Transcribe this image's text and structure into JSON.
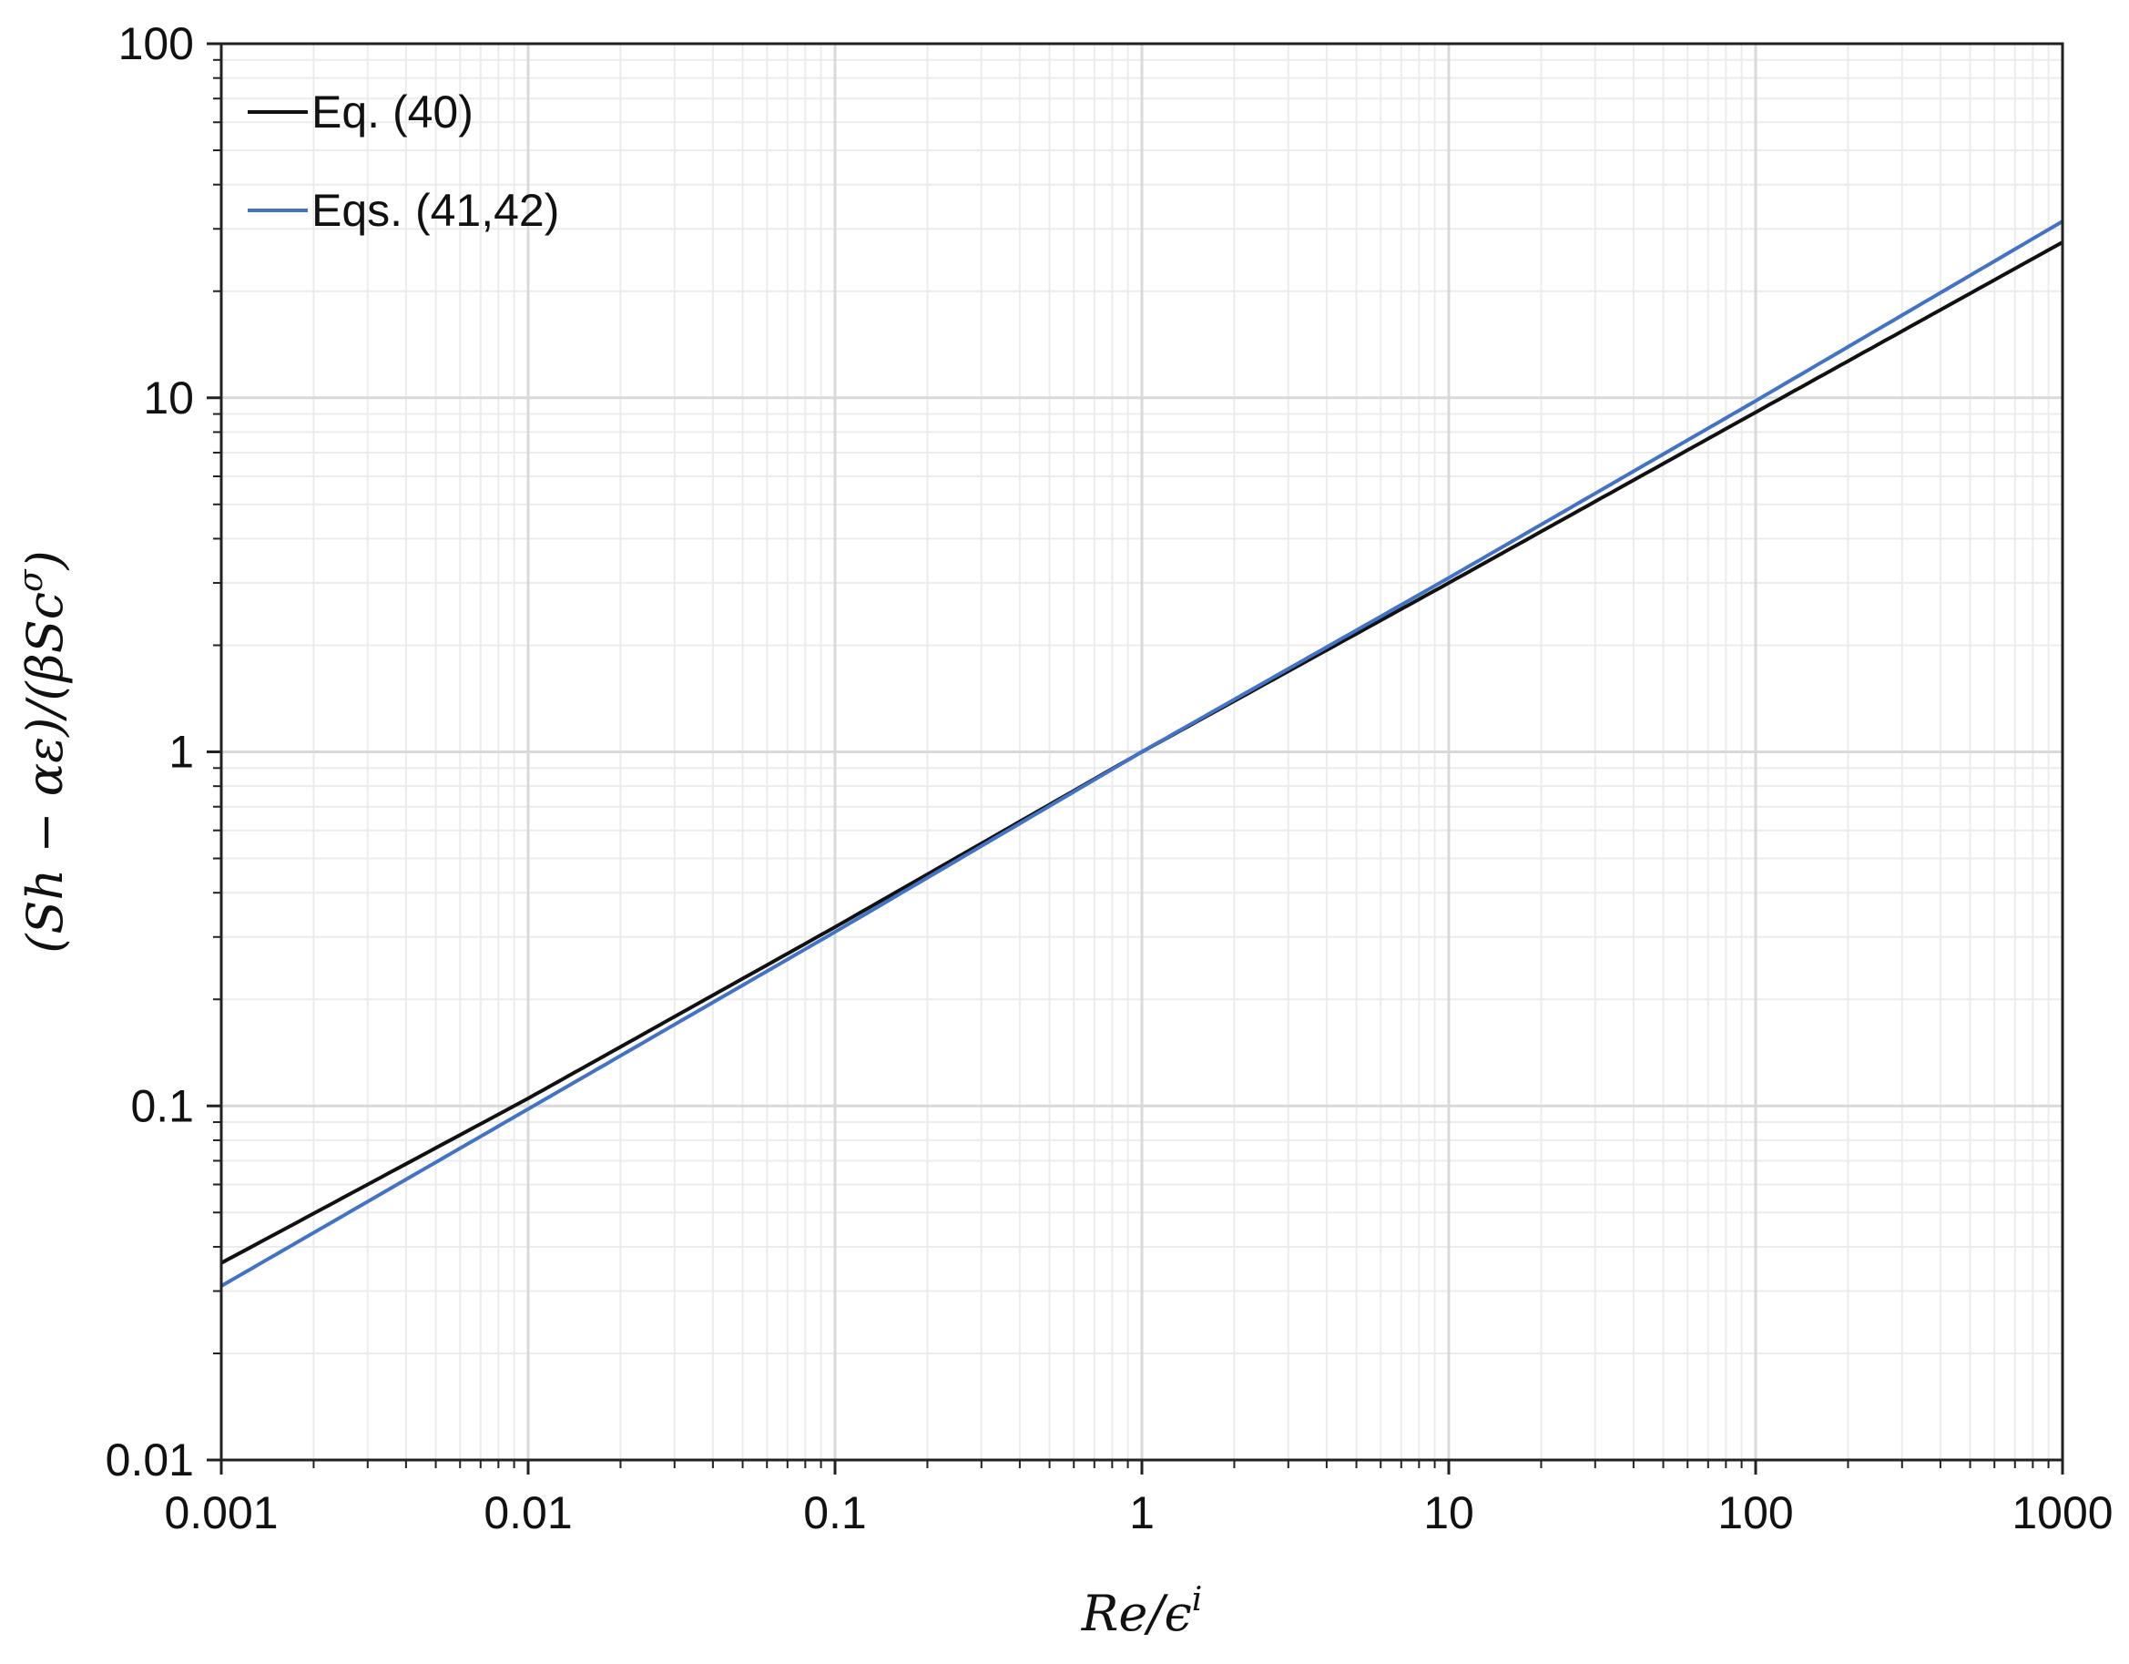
{
  "chart_data": {
    "type": "line",
    "xlabel": "Re/ϵ^i",
    "xlabel_parts": {
      "base": "Re/ϵ",
      "sup": "i"
    },
    "ylabel": "(Sh − αε)/(βSc^σ)",
    "ylabel_parts": {
      "pre": "(Sh − αε)/(βSc",
      "sup": "σ",
      "post": ")"
    },
    "xscale": "log",
    "yscale": "log",
    "xlim": [
      0.001,
      1000
    ],
    "ylim": [
      0.01,
      100
    ],
    "x_ticks": [
      0.001,
      0.01,
      0.1,
      1,
      10,
      100,
      1000
    ],
    "x_tick_labels": [
      "0.001",
      "0.01",
      "0.1",
      "1",
      "10",
      "100",
      "1000"
    ],
    "y_ticks": [
      0.01,
      0.1,
      1,
      10,
      100
    ],
    "y_tick_labels": [
      "0.01",
      "0.1",
      "1",
      "10",
      "100"
    ],
    "grid": true,
    "legend_position": "top-left",
    "series": [
      {
        "name": "Eq. (40)",
        "color": "#111111",
        "x": [
          0.001,
          0.01,
          0.1,
          1,
          10,
          100,
          1000
        ],
        "y": [
          0.036,
          0.105,
          0.32,
          1.0,
          3.0,
          9.1,
          27.5
        ]
      },
      {
        "name": "Eqs. (41,42)",
        "color": "#4472c4",
        "x": [
          0.001,
          0.01,
          0.1,
          1,
          10,
          100,
          1000
        ],
        "y": [
          0.031,
          0.098,
          0.31,
          1.0,
          3.1,
          9.8,
          31.5
        ]
      }
    ]
  }
}
